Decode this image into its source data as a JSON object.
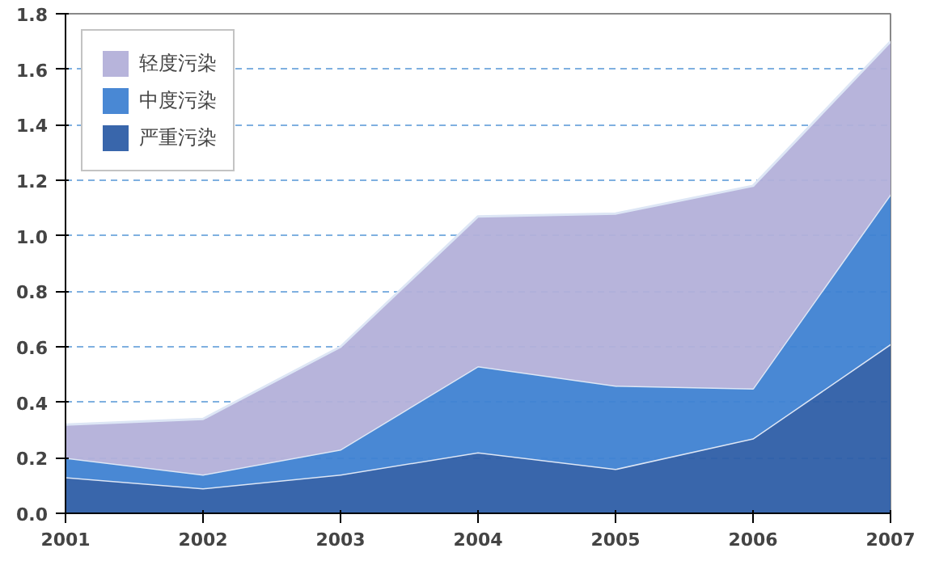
{
  "chart_data": {
    "type": "area",
    "stacked": true,
    "categories": [
      "2001",
      "2002",
      "2003",
      "2004",
      "2005",
      "2006",
      "2007"
    ],
    "series": [
      {
        "name": "严重污染",
        "color": "#2e5ea6",
        "values": [
          0.13,
          0.09,
          0.14,
          0.22,
          0.16,
          0.27,
          0.61
        ]
      },
      {
        "name": "中度污染",
        "color": "#3f82d2",
        "values": [
          0.07,
          0.05,
          0.09,
          0.31,
          0.3,
          0.18,
          0.54
        ]
      },
      {
        "name": "轻度污染",
        "color": "#b3b0d9",
        "values": [
          0.12,
          0.2,
          0.37,
          0.54,
          0.62,
          0.73,
          0.55
        ]
      }
    ],
    "ylim": [
      0,
      1.8
    ],
    "yticks": [
      {
        "value": 0,
        "label": "0.0"
      },
      {
        "value": 0.2,
        "label": "0.2"
      },
      {
        "value": 0.4,
        "label": "0.4"
      },
      {
        "value": 0.6,
        "label": "0.6"
      },
      {
        "value": 0.8,
        "label": "0.8"
      },
      {
        "value": 1.0,
        "label": "1.0"
      },
      {
        "value": 1.2,
        "label": "1.2"
      },
      {
        "value": 1.4,
        "label": "1.4"
      },
      {
        "value": 1.6,
        "label": "1.6"
      },
      {
        "value": 1.8,
        "label": "1.8"
      }
    ],
    "grid": "y",
    "legend": "top left"
  }
}
